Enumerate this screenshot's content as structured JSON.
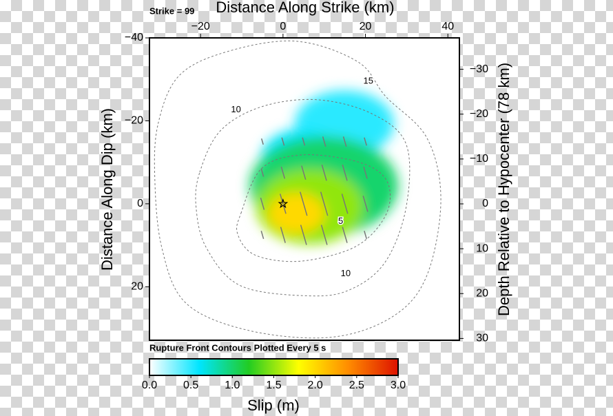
{
  "chart_data": {
    "type": "slip-map",
    "title": "Distance Along Strike (km)",
    "strike_label": "Strike = 99",
    "ylabel": "Distance Along Dip (km)",
    "y2label": "Depth Relative to Hypocenter (78 km)",
    "colorbar_title": "Rupture Front Contours Plotted Every 5 s",
    "colorbar_label": "Slip (m)",
    "xlim": [
      -32.4,
      42.8
    ],
    "ylim": [
      -40,
      32.9
    ],
    "y2lim": [
      -37,
      30.4
    ],
    "xticks": [
      {
        "value": -20,
        "label": "−20"
      },
      0,
      20,
      40
    ],
    "yticks": [
      {
        "value": -40,
        "label": "−40"
      },
      {
        "value": -20,
        "label": "−20"
      },
      0,
      20
    ],
    "y2ticks": [
      {
        "value": -30,
        "label": "−30"
      },
      {
        "value": -20,
        "label": "−20"
      },
      {
        "value": -10,
        "label": "−10"
      },
      0,
      10,
      20,
      30
    ],
    "clim": [
      0,
      3
    ],
    "cticks": [
      {
        "value": 0,
        "label": "0.0"
      },
      0.5,
      {
        "value": 1,
        "label": "1.0"
      },
      1.5,
      {
        "value": 2,
        "label": "2.0"
      },
      2.5,
      {
        "value": 3,
        "label": "3.0"
      }
    ],
    "colormap": [
      "#ffffff",
      "#00e5ff",
      "#22cc22",
      "#ffff00",
      "#ff8c00",
      "#dd1100"
    ],
    "slip": {
      "x": [
        14.9,
        4.8,
        9.9,
        6.5,
        3.2
      ],
      "y": [
        -19.3,
        -11,
        -4.3,
        0.7,
        2.3
      ],
      "rx": [
        12,
        10,
        18,
        13,
        7
      ],
      "ry": [
        8,
        7,
        12,
        9,
        5
      ],
      "values": [
        0.5,
        0.6,
        1.0,
        1.5,
        2.0
      ]
    },
    "slip_vectors": {
      "x": [
        -5,
        0,
        5,
        10,
        15,
        20,
        -5,
        0,
        5,
        10,
        15,
        20,
        -5,
        0,
        5,
        10,
        15,
        20,
        -5,
        0,
        5,
        10,
        15,
        20
      ],
      "y": [
        -15,
        -15,
        -15,
        -15,
        -15,
        -15,
        -7.5,
        -7.5,
        -7.5,
        -7.5,
        -7.5,
        -7.5,
        0,
        0,
        0,
        0,
        0,
        0,
        7.5,
        7.5,
        7.5,
        7.5,
        7.5,
        7.5
      ],
      "length": [
        1.5,
        2,
        2,
        2.5,
        2.5,
        2,
        2,
        3,
        3.5,
        4,
        4,
        3,
        3,
        5,
        6,
        6,
        5,
        4,
        2,
        4,
        5,
        5,
        4,
        2
      ]
    },
    "contours": [
      {
        "level": 5,
        "x": [
          -10.2,
          -5.2,
          4.8,
          18.2,
          24.9,
          25.7,
          21.6,
          14.9,
          3.2,
          -6.9,
          -11.0
        ],
        "y": [
          2.3,
          -8.5,
          -11.8,
          -10.1,
          -6.0,
          0.7,
          7.3,
          11.5,
          13.9,
          12.3,
          7.3
        ],
        "labels": [
          {
            "x": 14.0,
            "y": 4.3
          }
        ]
      },
      {
        "level": 10,
        "x": [
          -20.2,
          -15.2,
          -5.2,
          8.2,
          21.6,
          29.9,
          29.9,
          24.9,
          16.5,
          6.5,
          -10.2,
          -18.6,
          -21.1
        ],
        "y": [
          -7.6,
          -17.6,
          -23.4,
          -25.1,
          -21.7,
          -14.3,
          0.7,
          13.9,
          20.6,
          22.2,
          19.8,
          10.6,
          0.7
        ],
        "labels": [
          {
            "x": -11.4,
            "y": -22.6
          },
          {
            "x": 15.2,
            "y": 16.9
          }
        ]
      },
      {
        "level": 15,
        "x": [
          -30.3,
          -25.2,
          -13.5,
          3.2,
          18.2,
          24.9,
          34.9,
          38.3,
          34.9,
          26.6,
          11.5,
          -8.5,
          -23.6,
          -29.4,
          -31.1
        ],
        "y": [
          -19.3,
          -30.9,
          -36.7,
          -39.2,
          -34.2,
          -25.9,
          -15.9,
          -1.0,
          17.3,
          27.2,
          32.2,
          30.5,
          23.9,
          10.6,
          -6.0
        ],
        "labels": [
          {
            "x": 20.7,
            "y": -29.5
          }
        ]
      }
    ],
    "hypocenter": {
      "x": 0,
      "y": 0
    }
  }
}
